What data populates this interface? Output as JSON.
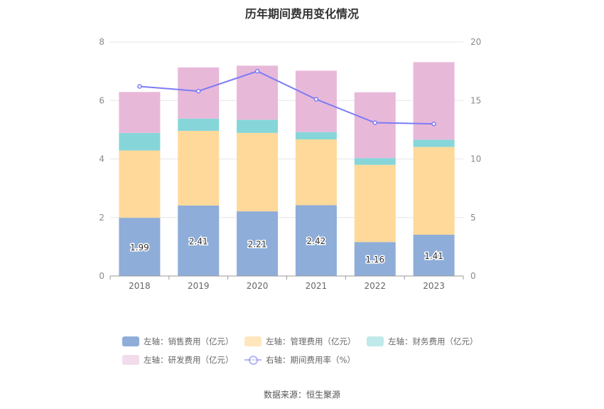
{
  "chart_data": {
    "type": "bar",
    "title": "历年期间费用变化情况",
    "categories": [
      "2018",
      "2019",
      "2020",
      "2021",
      "2022",
      "2023"
    ],
    "stacked": true,
    "series": [
      {
        "name": "左轴：销售费用（亿元）",
        "axis": "left",
        "type": "bar",
        "color": "#8eadd9",
        "values": [
          1.99,
          2.41,
          2.21,
          2.42,
          1.16,
          1.41
        ],
        "labels": [
          "1.99",
          "2.41",
          "2.21",
          "2.42",
          "1.16",
          "1.41"
        ]
      },
      {
        "name": "左轴：管理费用（亿元）",
        "axis": "left",
        "type": "bar",
        "color": "#ffd99a",
        "values": [
          2.3,
          2.55,
          2.68,
          2.25,
          2.64,
          3.0
        ]
      },
      {
        "name": "左轴：财务费用（亿元）",
        "axis": "left",
        "type": "bar",
        "color": "#86d6d9",
        "values": [
          0.6,
          0.42,
          0.45,
          0.25,
          0.23,
          0.25
        ]
      },
      {
        "name": "左轴：研发费用（亿元）",
        "axis": "left",
        "type": "bar",
        "color": "#e8b8d9",
        "values": [
          1.4,
          1.75,
          1.85,
          2.1,
          2.25,
          2.65
        ]
      },
      {
        "name": "右轴：期间费用率（%）",
        "axis": "right",
        "type": "line",
        "color": "#7c7cf4",
        "values": [
          16.2,
          15.8,
          17.5,
          15.1,
          13.1,
          13.0
        ]
      }
    ],
    "y_left": {
      "min": 0,
      "max": 8,
      "ticks": [
        "0",
        "2",
        "4",
        "6",
        "8"
      ]
    },
    "y_right": {
      "min": 0,
      "max": 20,
      "ticks": [
        "0",
        "5",
        "10",
        "15",
        "20"
      ]
    },
    "grid": true,
    "legend_position": "bottom"
  },
  "legend": {
    "sales": "左轴：销售费用（亿元）",
    "admin": "左轴：管理费用（亿元）",
    "finance": "左轴：财务费用（亿元）",
    "rd": "左轴：研发费用（亿元）",
    "rate": "右轴：期间费用率（%）"
  },
  "source": "数据来源：恒生聚源"
}
